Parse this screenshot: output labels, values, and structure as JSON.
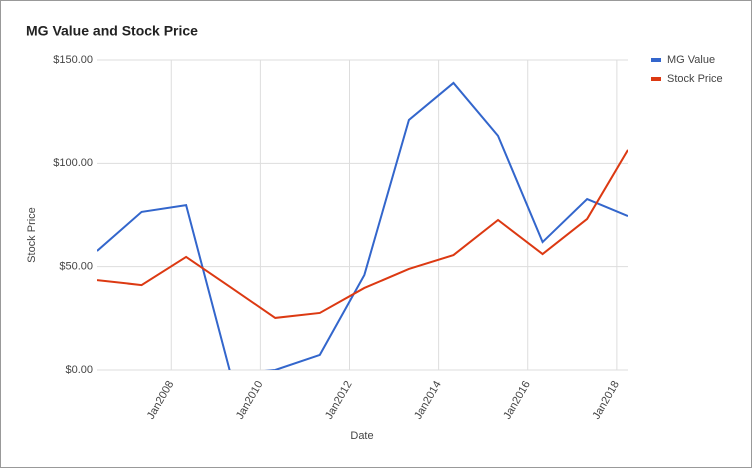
{
  "chart_data": {
    "type": "line",
    "title": "MG Value and Stock Price",
    "x_label": "Date",
    "y_label": "Stock Price",
    "x": [
      "2006-05",
      "2007-05",
      "2008-05",
      "2009-05",
      "2010-05",
      "2011-05",
      "2012-05",
      "2013-05",
      "2014-05",
      "2015-05",
      "2016-05",
      "2017-05",
      "2018-04"
    ],
    "series": [
      {
        "name": "MG Value",
        "color": "#3366cc",
        "values": [
          57.6,
          76.5,
          79.8,
          -2,
          0,
          7.3,
          46,
          121,
          138.9,
          113.3,
          61.9,
          82.7,
          74.5
        ]
      },
      {
        "name": "Stock Price",
        "color": "#dc3912",
        "values": [
          43.5,
          41.1,
          54.7,
          40,
          25.2,
          27.6,
          39.7,
          48.9,
          55.6,
          72.6,
          56.1,
          73.1,
          106.5
        ]
      }
    ],
    "xlim": [
      "2006-05",
      "2018-04"
    ],
    "xticks": [
      {
        "value": "2008-01",
        "label": "Jan2008"
      },
      {
        "value": "2010-01",
        "label": "Jan2010"
      },
      {
        "value": "2012-01",
        "label": "Jan2012"
      },
      {
        "value": "2014-01",
        "label": "Jan2014"
      },
      {
        "value": "2016-01",
        "label": "Jan2016"
      },
      {
        "value": "2018-01",
        "label": "Jan2018"
      }
    ],
    "ylim": [
      0,
      150
    ],
    "yticks": [
      {
        "value": 0,
        "label": "$0.00"
      },
      {
        "value": 50,
        "label": "$50.00"
      },
      {
        "value": 100,
        "label": "$100.00"
      },
      {
        "value": 150,
        "label": "$150.00"
      }
    ],
    "grid": true,
    "legend": "right"
  }
}
